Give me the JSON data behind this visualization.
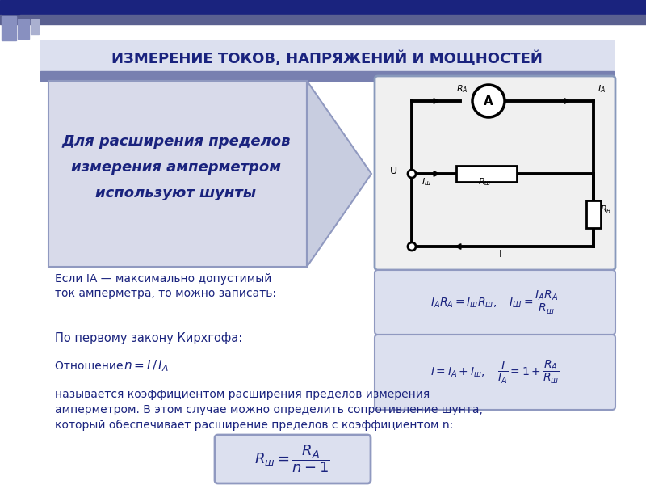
{
  "title": "ИЗМЕРЕНИЕ ТОКОВ, НАПРЯЖЕНИЙ И МОЩНОСТЕЙ",
  "title_color": "#1a237e",
  "title_bg": "#dce0ef",
  "header_stripe_color": "#7880b0",
  "slide_bg": "#ffffff",
  "box1_text_line1": "Для расширения пределов",
  "box1_text_line2": "измерения амперметром",
  "box1_text_line3": "используют шунты",
  "box1_bg": "#d8daea",
  "box1_border": "#9099c0",
  "arrow_color": "#c8cde0",
  "circuit_bg": "#f0f0f0",
  "circuit_border": "#8899bb",
  "text_color": "#1a237e",
  "formula_bg": "#dce0ef",
  "formula_border": "#9099c0",
  "left_text1_line1": "Если IА — максимально допустимый",
  "left_text1_line2": "ток амперметра, то можно записать:",
  "left_text2": "По первому закону Кирхгофа:",
  "left_text3_pre": "Отношение ",
  "bottom_text1": "называется коэффициентом расширения пределов измерения",
  "bottom_text2": "амперметром. В этом случае можно определить сопротивление шунта,",
  "bottom_text3": "который обеспечивает расширение пределов с коэффициентом n:"
}
